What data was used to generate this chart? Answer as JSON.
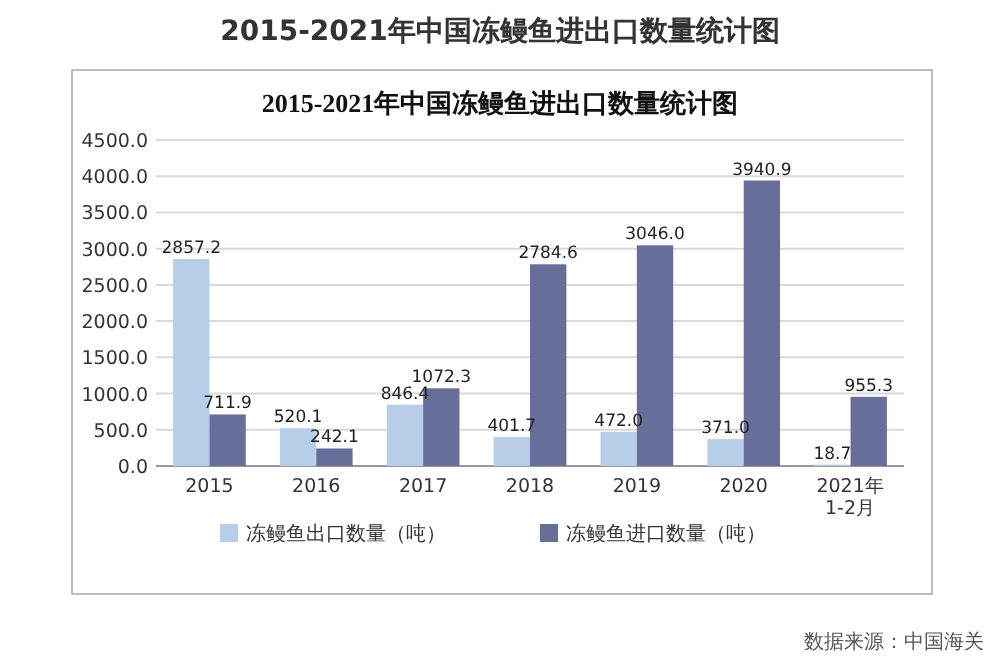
{
  "chart_data": {
    "type": "bar",
    "title": "2015-2021年中国冻鳗鱼进出口数量统计图",
    "subtitle": "2015-2021年中国冻鳗鱼进出口数量统计图",
    "categories": [
      "2015",
      "2016",
      "2017",
      "2018",
      "2019",
      "2020",
      "2021年\n1-2月"
    ],
    "series": [
      {
        "name": "冻鳗鱼出口数量（吨）",
        "color": "#b7cde8",
        "values": [
          2857.2,
          520.1,
          846.4,
          401.7,
          472.0,
          371.0,
          18.7
        ],
        "value_labels": [
          "2857.2",
          "520.1",
          "846.4",
          "401.7",
          "472.0",
          "371.0",
          "18.7"
        ]
      },
      {
        "name": "冻鳗鱼进口数量（吨）",
        "color": "#686e9a",
        "values": [
          711.9,
          242.1,
          1072.3,
          2784.6,
          3046.0,
          3940.9,
          955.3
        ],
        "value_labels": [
          "711.9",
          "242.1",
          "1072.3",
          "2784.6",
          "3046.0",
          "3940.9",
          "955.3"
        ]
      }
    ],
    "ylim": [
      0,
      4500
    ],
    "yticks": [
      {
        "value": 0,
        "label": "0.0"
      },
      {
        "value": 500,
        "label": "500.0"
      },
      {
        "value": 1000,
        "label": "1000.0"
      },
      {
        "value": 1500,
        "label": "1500.0"
      },
      {
        "value": 2000,
        "label": "2000.0"
      },
      {
        "value": 2500,
        "label": "2500.0"
      },
      {
        "value": 3000,
        "label": "3000.0"
      },
      {
        "value": 3500,
        "label": "3500.0"
      },
      {
        "value": 4000,
        "label": "4000.0"
      },
      {
        "value": 4500,
        "label": "4500.0"
      }
    ],
    "grid": "y",
    "legend": "bottom",
    "annotations": [
      "数据来源：中国海关"
    ]
  }
}
